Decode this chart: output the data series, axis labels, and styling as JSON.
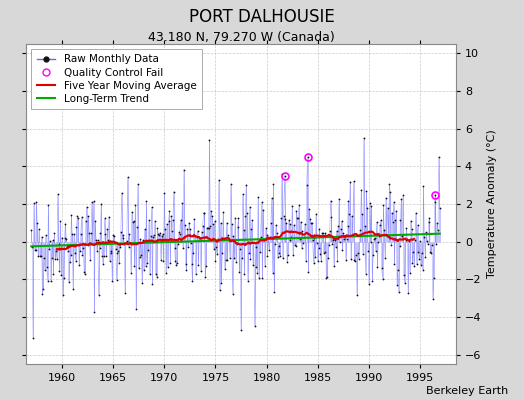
{
  "title": "PORT DALHOUSIE",
  "subtitle": "43.180 N, 79.270 W (Canada)",
  "ylabel": "Temperature Anomaly (°C)",
  "watermark": "Berkeley Earth",
  "xlim": [
    1956.5,
    1998.5
  ],
  "ylim": [
    -6.5,
    10.5
  ],
  "yticks": [
    -6,
    -4,
    -2,
    0,
    2,
    4,
    6,
    8,
    10
  ],
  "xticks": [
    1960,
    1965,
    1970,
    1975,
    1980,
    1985,
    1990,
    1995
  ],
  "bg_color": "#d8d8d8",
  "plot_bg_color": "#ffffff",
  "raw_line_color": "#6666ff",
  "raw_line_alpha": 0.55,
  "raw_marker_color": "#111111",
  "ma_color": "#dd0000",
  "trend_color": "#00aa00",
  "qc_fail_color": "#ff00ff",
  "seed": 42,
  "n_months": 480,
  "start_year": 1957.0,
  "title_fontsize": 12,
  "subtitle_fontsize": 9,
  "ylabel_fontsize": 8,
  "tick_fontsize": 8,
  "watermark_fontsize": 8,
  "legend_fontsize": 7.5
}
